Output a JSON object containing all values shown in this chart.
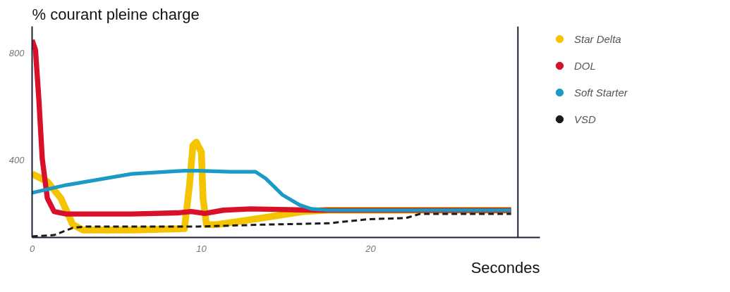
{
  "chart_data": {
    "type": "line",
    "ylabel": "% courant pleine charge",
    "xlabel": "Secondes",
    "xlim": [
      0,
      30
    ],
    "ylim": [
      110,
      900
    ],
    "xticks": [
      0,
      10,
      20
    ],
    "yticks": [
      400,
      800
    ],
    "grid": false,
    "legend": "right",
    "line_style": "solid",
    "ref_lines": [
      {
        "axis": "x",
        "value": 28.7,
        "label": null,
        "color": "#1a2433"
      }
    ],
    "series": [
      {
        "name": "Star Delta",
        "color": "#f5c400",
        "x": [
          0,
          0.9,
          1.7,
          2.4,
          3,
          5.9,
          9,
          9.3,
          9.5,
          9.7,
          10,
          10.1,
          10.3,
          10.9,
          13.6,
          16,
          17.5,
          28.3
        ],
        "values": [
          348,
          319,
          257,
          158,
          138,
          138,
          143,
          306,
          454,
          467,
          430,
          257,
          158,
          158,
          183,
          207,
          212,
          212
        ]
      },
      {
        "name": "DOL",
        "color": "#d9102a",
        "x": [
          0,
          0.2,
          0.4,
          0.6,
          0.9,
          1.3,
          2,
          5.9,
          8.6,
          9.4,
          10.2,
          11.3,
          12.9,
          16.7,
          28.3
        ],
        "values": [
          849,
          812,
          627,
          405,
          257,
          207,
          198,
          198,
          202,
          207,
          200,
          212,
          217,
          212,
          212
        ]
      },
      {
        "name": "Soft Starter",
        "color": "#1a9ac6",
        "x": [
          0,
          2,
          5.9,
          9,
          9.8,
          11.7,
          13.2,
          13.8,
          14.8,
          15.8,
          16.5,
          17.5,
          28.3
        ],
        "values": [
          277,
          306,
          348,
          360,
          360,
          356,
          356,
          331,
          269,
          232,
          217,
          212,
          212
        ]
      },
      {
        "name": "VSD",
        "color": "#1a1a1a",
        "line_style": "dashed",
        "x": [
          0,
          1.3,
          2.4,
          3.2,
          9.8,
          13.6,
          17.5,
          19.8,
          22.1,
          22.9,
          28.3
        ],
        "values": [
          114,
          119,
          146,
          151,
          151,
          158,
          163,
          178,
          183,
          198,
          198
        ]
      }
    ]
  }
}
